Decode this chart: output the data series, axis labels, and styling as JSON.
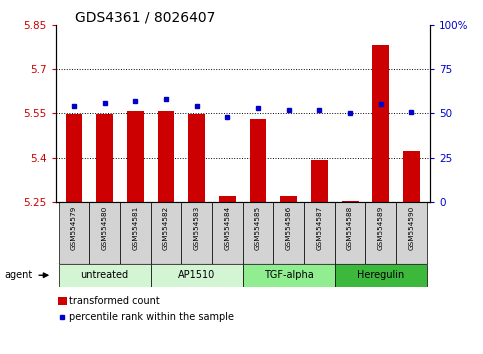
{
  "title": "GDS4361 / 8026407",
  "samples": [
    "GSM554579",
    "GSM554580",
    "GSM554581",
    "GSM554582",
    "GSM554583",
    "GSM554584",
    "GSM554585",
    "GSM554586",
    "GSM554587",
    "GSM554588",
    "GSM554589",
    "GSM554590"
  ],
  "red_values": [
    5.547,
    5.548,
    5.557,
    5.557,
    5.547,
    5.268,
    5.53,
    5.268,
    5.39,
    5.254,
    5.78,
    5.423
  ],
  "blue_values": [
    54,
    56,
    57,
    58,
    54,
    48,
    53,
    52,
    52,
    50,
    55,
    51
  ],
  "ylim_left": [
    5.25,
    5.85
  ],
  "ylim_right": [
    0,
    100
  ],
  "yticks_left": [
    5.25,
    5.4,
    5.55,
    5.7,
    5.85
  ],
  "yticks_right": [
    0,
    25,
    50,
    75,
    100
  ],
  "ytick_labels_left": [
    "5.25",
    "5.4",
    "5.55",
    "5.7",
    "5.85"
  ],
  "ytick_labels_right": [
    "0",
    "25",
    "50",
    "75",
    "100%"
  ],
  "hlines": [
    5.4,
    5.55,
    5.7
  ],
  "groups": [
    {
      "label": "untreated",
      "start": 0,
      "end": 2,
      "color": "#d4f5d4"
    },
    {
      "label": "AP1510",
      "start": 3,
      "end": 5,
      "color": "#d4f5d4"
    },
    {
      "label": "TGF-alpha",
      "start": 6,
      "end": 8,
      "color": "#90ee90"
    },
    {
      "label": "Heregulin",
      "start": 9,
      "end": 11,
      "color": "#3cb83c"
    }
  ],
  "bar_color": "#cc0000",
  "dot_color": "#0000cc",
  "legend_bar_label": "transformed count",
  "legend_dot_label": "percentile rank within the sample",
  "agent_label": "agent",
  "background_color": "#ffffff",
  "plot_bg": "#ffffff",
  "label_color_left": "#cc0000",
  "label_color_right": "#0000cc",
  "title_fontsize": 10,
  "tick_fontsize": 7.5,
  "bar_width": 0.55,
  "sample_bg_color": "#d3d3d3",
  "legend_fontsize": 7
}
